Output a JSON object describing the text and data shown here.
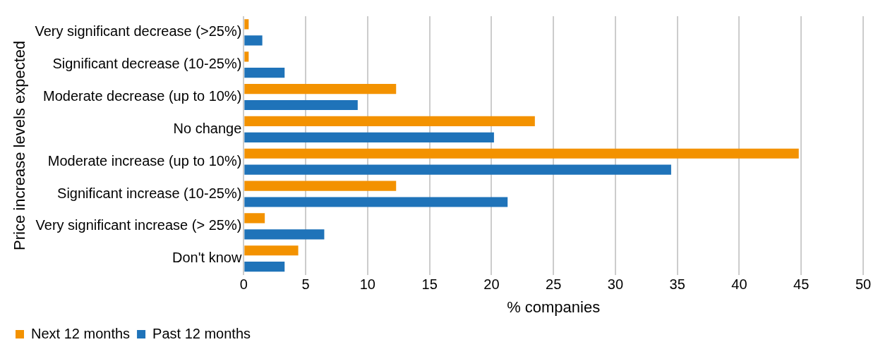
{
  "chart_data": {
    "type": "bar",
    "orientation": "horizontal",
    "xlabel": "% companies",
    "ylabel": "Price increase levels expected",
    "categories": [
      "Very significant decrease (>25%)",
      "Significant decrease (10-25%)",
      "Moderate decrease (up to 10%)",
      "No change",
      "Moderate increase (up to 10%)",
      "Significant increase (10-25%)",
      "Very significant increase (> 25%)",
      "Don't know"
    ],
    "series": [
      {
        "name": "Next 12 months",
        "color": "#f39200",
        "values": [
          0.4,
          0.4,
          12.3,
          23.5,
          44.8,
          12.3,
          1.7,
          4.4
        ]
      },
      {
        "name": "Past 12 months",
        "color": "#1f73b9",
        "values": [
          1.5,
          3.3,
          9.2,
          20.2,
          34.5,
          21.3,
          6.5,
          3.3
        ]
      }
    ],
    "xlim": [
      0,
      50
    ],
    "xticks": [
      0,
      5,
      10,
      15,
      20,
      25,
      30,
      35,
      40,
      45,
      50
    ],
    "grid": "x",
    "legend": "bottom left"
  }
}
